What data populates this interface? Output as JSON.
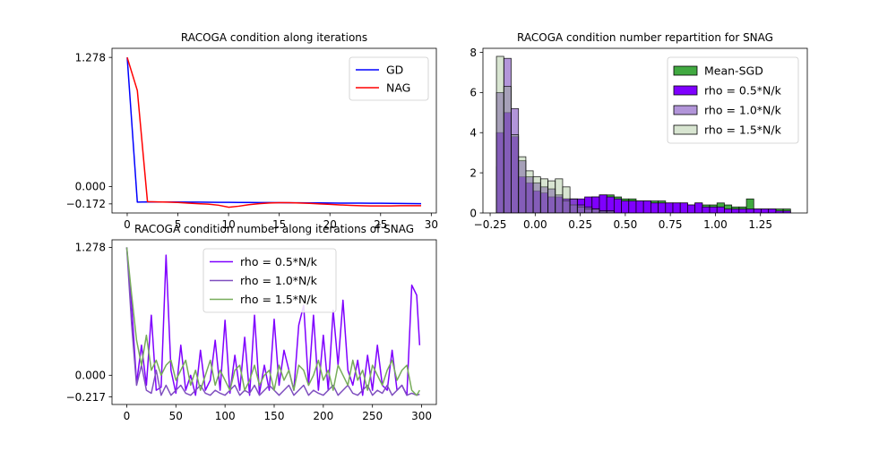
{
  "chart_data": [
    {
      "type": "line",
      "title": "RACOGA condition along iterations",
      "xlabel": "",
      "ylabel": "",
      "xlim": [
        -1.5,
        30.5
      ],
      "ylim": [
        -0.262,
        1.368
      ],
      "xticks": [
        0,
        5,
        10,
        15,
        20,
        25,
        30
      ],
      "xtick_labels": [
        "0",
        "5",
        "10",
        "15",
        "20",
        "25",
        "30"
      ],
      "yticks": [
        1.278,
        0.0,
        -0.172
      ],
      "ytick_labels": [
        "1.278",
        "0.000",
        "−0.172"
      ],
      "legend_position": "upper-right",
      "series": [
        {
          "name": "GD",
          "color": "#0000ff",
          "x": [
            0,
            1,
            2,
            3,
            4,
            5,
            6,
            7,
            8,
            9,
            10,
            11,
            12,
            13,
            14,
            15,
            16,
            17,
            18,
            19,
            20,
            21,
            22,
            23,
            24,
            25,
            26,
            27,
            28,
            29
          ],
          "y": [
            1.278,
            -0.155,
            -0.152,
            -0.153,
            -0.153,
            -0.154,
            -0.155,
            -0.155,
            -0.156,
            -0.157,
            -0.157,
            -0.158,
            -0.158,
            -0.159,
            -0.159,
            -0.16,
            -0.161,
            -0.161,
            -0.162,
            -0.162,
            -0.163,
            -0.164,
            -0.164,
            -0.165,
            -0.166,
            -0.166,
            -0.167,
            -0.168,
            -0.169,
            -0.17
          ]
        },
        {
          "name": "NAG",
          "color": "#ff0000",
          "x": [
            0,
            1,
            2,
            3,
            4,
            5,
            6,
            7,
            8,
            9,
            10,
            11,
            12,
            13,
            14,
            15,
            16,
            17,
            18,
            19,
            20,
            21,
            22,
            23,
            24,
            25,
            26,
            27,
            28,
            29
          ],
          "y": [
            1.278,
            0.95,
            -0.15,
            -0.152,
            -0.155,
            -0.158,
            -0.165,
            -0.17,
            -0.175,
            -0.185,
            -0.205,
            -0.195,
            -0.18,
            -0.17,
            -0.163,
            -0.16,
            -0.16,
            -0.163,
            -0.167,
            -0.172,
            -0.177,
            -0.182,
            -0.187,
            -0.19,
            -0.192,
            -0.192,
            -0.192,
            -0.19,
            -0.19,
            -0.19
          ]
        }
      ]
    },
    {
      "type": "bar",
      "title": "RACOGA condition number repartition for SNAG",
      "xlabel": "",
      "ylabel": "",
      "xlim": [
        -0.29,
        1.51
      ],
      "ylim": [
        0,
        8.2
      ],
      "xticks": [
        -0.25,
        0.0,
        0.25,
        0.5,
        0.75,
        1.0,
        1.25
      ],
      "xtick_labels": [
        "−0.25",
        "0.00",
        "0.25",
        "0.50",
        "0.75",
        "1.00",
        "1.25"
      ],
      "yticks": [
        0,
        2,
        4,
        6,
        8
      ],
      "ytick_labels": [
        "0",
        "2",
        "4",
        "6",
        "8"
      ],
      "legend_position": "upper-right",
      "series": [
        {
          "name": "Mean-SGD",
          "color": "#2ca02c",
          "alpha": 0.9,
          "bin_start": -0.215,
          "bin_width": 0.0408,
          "values": [
            2.3,
            2.0,
            1.5,
            1.0,
            0.8,
            0.7,
            0.6,
            0.8,
            0.7,
            0.7,
            0.6,
            0.6,
            0.7,
            0.8,
            0.9,
            0.9,
            0.8,
            0.7,
            0.7,
            0.6,
            0.6,
            0.6,
            0.6,
            0.5,
            0.5,
            0.5,
            0.4,
            0.5,
            0.4,
            0.4,
            0.5,
            0.4,
            0.3,
            0.3,
            0.7,
            0.2,
            0.2,
            0.2,
            0.2,
            0.2
          ]
        },
        {
          "name": "rho = 0.5*N/k",
          "color": "#7f00ff",
          "alpha": 1.0,
          "bin_start": -0.215,
          "bin_width": 0.0408,
          "values": [
            4.0,
            5.0,
            3.8,
            1.8,
            1.5,
            1.1,
            1.0,
            0.8,
            0.8,
            0.7,
            0.7,
            0.7,
            0.8,
            0.8,
            0.9,
            0.8,
            0.7,
            0.6,
            0.6,
            0.6,
            0.6,
            0.5,
            0.5,
            0.5,
            0.5,
            0.5,
            0.4,
            0.5,
            0.3,
            0.3,
            0.3,
            0.2,
            0.2,
            0.2,
            0.2,
            0.2,
            0.2,
            0.2,
            0.1,
            0.1
          ]
        },
        {
          "name": "rho = 1.0*N/k",
          "color": "#7f4fbf",
          "alpha": 0.6,
          "bin_start": -0.215,
          "bin_width": 0.0408,
          "values": [
            6.0,
            7.7,
            5.2,
            2.6,
            1.8,
            1.5,
            1.3,
            1.2,
            0.9,
            0.6,
            0.4,
            0.3,
            0.2,
            0.2,
            0.1,
            0.1,
            0,
            0,
            0,
            0,
            0,
            0,
            0,
            0,
            0,
            0,
            0,
            0,
            0,
            0,
            0,
            0,
            0,
            0,
            0,
            0,
            0,
            0,
            0,
            0
          ]
        },
        {
          "name": "rho = 1.5*N/k",
          "color": "#8fb57a",
          "alpha": 0.35,
          "bin_start": -0.215,
          "bin_width": 0.0408,
          "values": [
            7.8,
            6.3,
            3.9,
            2.8,
            2.1,
            1.8,
            1.7,
            1.6,
            1.7,
            1.3,
            0.7,
            0.4,
            0.3,
            0.2,
            0.1,
            0.1,
            0,
            0,
            0,
            0,
            0,
            0,
            0,
            0,
            0,
            0,
            0,
            0,
            0,
            0,
            0,
            0,
            0,
            0,
            0,
            0,
            0,
            0,
            0,
            0
          ]
        }
      ]
    },
    {
      "type": "line",
      "title": "RACOGA condition number along iterations of SNAG",
      "xlabel": "",
      "ylabel": "",
      "xlim": [
        -15,
        315
      ],
      "ylim": [
        -0.292,
        1.353
      ],
      "xticks": [
        0,
        50,
        100,
        150,
        200,
        250,
        300
      ],
      "xtick_labels": [
        "0",
        "50",
        "100",
        "150",
        "200",
        "250",
        "300"
      ],
      "yticks": [
        1.278,
        0.0,
        -0.217
      ],
      "ytick_labels": [
        "1.278",
        "0.000",
        "−0.217"
      ],
      "legend_position": "upper-center",
      "series": [
        {
          "name": "rho = 0.5*N/k",
          "color": "#7f00ff",
          "x": [
            0,
            5,
            10,
            15,
            20,
            25,
            30,
            35,
            40,
            45,
            50,
            55,
            60,
            65,
            70,
            75,
            80,
            85,
            90,
            95,
            100,
            105,
            110,
            115,
            120,
            125,
            130,
            135,
            140,
            145,
            150,
            155,
            160,
            165,
            170,
            175,
            180,
            185,
            190,
            195,
            200,
            205,
            210,
            215,
            220,
            225,
            230,
            235,
            240,
            245,
            250,
            255,
            260,
            265,
            270,
            275,
            280,
            285,
            290,
            295,
            298
          ],
          "y": [
            1.278,
            0.7,
            -0.08,
            0.3,
            -0.1,
            0.6,
            -0.15,
            -0.12,
            1.2,
            0.05,
            -0.18,
            0.3,
            -0.15,
            0.0,
            -0.2,
            0.25,
            -0.15,
            -0.05,
            0.35,
            -0.15,
            0.55,
            -0.18,
            0.2,
            -0.15,
            0.38,
            -0.2,
            0.6,
            -0.18,
            0.1,
            -0.15,
            0.56,
            -0.1,
            0.25,
            0.05,
            -0.15,
            0.5,
            0.7,
            -0.1,
            0.6,
            -0.15,
            0.4,
            -0.15,
            0.65,
            0.1,
            0.75,
            0.05,
            -0.1,
            0.15,
            -0.2,
            0.2,
            -0.15,
            0.3,
            -0.1,
            -0.15,
            0.25,
            -0.15,
            -0.1,
            -0.2,
            0.9,
            0.8,
            0.3
          ]
        },
        {
          "name": "rho = 1.0*N/k",
          "color": "#7f4fbf",
          "x": [
            0,
            5,
            10,
            15,
            20,
            25,
            30,
            35,
            40,
            45,
            50,
            55,
            60,
            65,
            70,
            75,
            80,
            85,
            90,
            95,
            100,
            105,
            110,
            115,
            120,
            125,
            130,
            135,
            140,
            145,
            150,
            155,
            160,
            165,
            170,
            175,
            180,
            185,
            190,
            195,
            200,
            205,
            210,
            215,
            220,
            225,
            230,
            235,
            240,
            245,
            250,
            255,
            260,
            265,
            270,
            275,
            280,
            285,
            290,
            295,
            298
          ],
          "y": [
            1.278,
            0.5,
            -0.1,
            0.1,
            -0.15,
            -0.18,
            0.05,
            -0.2,
            -0.1,
            -0.2,
            -0.15,
            -0.1,
            -0.18,
            -0.2,
            -0.15,
            -0.1,
            -0.18,
            -0.2,
            -0.15,
            -0.18,
            -0.2,
            -0.15,
            -0.1,
            -0.2,
            -0.15,
            -0.18,
            -0.1,
            -0.2,
            -0.15,
            -0.1,
            -0.15,
            -0.2,
            -0.15,
            -0.1,
            -0.2,
            -0.15,
            -0.1,
            -0.2,
            -0.15,
            -0.18,
            -0.2,
            -0.15,
            -0.1,
            -0.2,
            -0.15,
            -0.1,
            -0.18,
            -0.2,
            -0.15,
            -0.1,
            -0.2,
            -0.15,
            -0.18,
            -0.1,
            -0.2,
            -0.15,
            -0.1,
            -0.2,
            -0.18,
            -0.2,
            -0.19
          ]
        },
        {
          "name": "rho = 1.5*N/k",
          "color": "#77ac5a",
          "x": [
            0,
            5,
            10,
            15,
            20,
            25,
            30,
            35,
            40,
            45,
            50,
            55,
            60,
            65,
            70,
            75,
            80,
            85,
            90,
            95,
            100,
            105,
            110,
            115,
            120,
            125,
            130,
            135,
            140,
            145,
            150,
            155,
            160,
            165,
            170,
            175,
            180,
            185,
            190,
            195,
            200,
            205,
            210,
            215,
            220,
            225,
            230,
            235,
            240,
            245,
            250,
            255,
            260,
            265,
            270,
            275,
            280,
            285,
            290,
            295,
            298
          ],
          "y": [
            1.278,
            0.8,
            0.35,
            0.1,
            0.4,
            0.05,
            0.15,
            0.0,
            0.1,
            0.15,
            -0.05,
            0.05,
            0.15,
            -0.1,
            0.05,
            -0.15,
            0.0,
            0.15,
            -0.1,
            0.05,
            -0.05,
            -0.15,
            0.05,
            0.1,
            -0.15,
            -0.05,
            0.1,
            -0.1,
            0.0,
            0.05,
            -0.15,
            0.1,
            -0.05,
            0.05,
            -0.15,
            0.1,
            0.05,
            -0.1,
            0.0,
            0.15,
            -0.05,
            0.05,
            -0.15,
            0.1,
            0.0,
            -0.1,
            0.15,
            -0.05,
            0.05,
            -0.15,
            0.1,
            0.0,
            -0.1,
            0.05,
            0.15,
            -0.05,
            0.05,
            0.1,
            -0.15,
            -0.2,
            -0.15
          ]
        }
      ]
    }
  ]
}
